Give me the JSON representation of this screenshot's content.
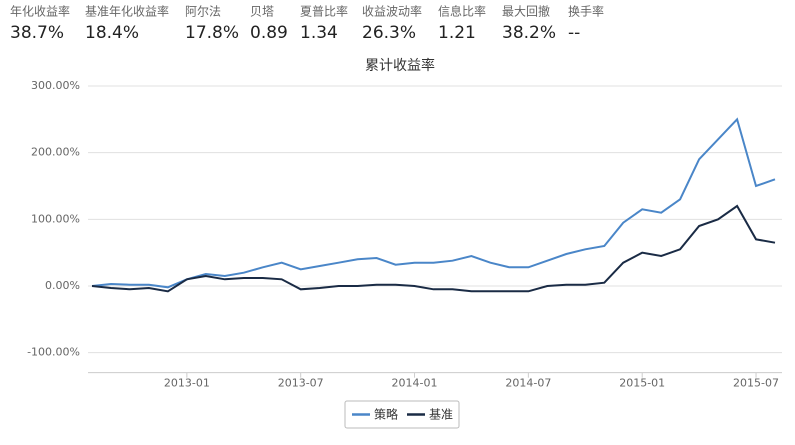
{
  "header": {
    "stats": [
      {
        "label": "年化收益率",
        "value": "38.7%"
      },
      {
        "label": "基准年化收益率",
        "value": "18.4%"
      },
      {
        "label": "阿尔法",
        "value": "17.8%"
      },
      {
        "label": "贝塔",
        "value": "0.89"
      },
      {
        "label": "夏普比率",
        "value": "1.34"
      },
      {
        "label": "收益波动率",
        "value": "26.3%"
      },
      {
        "label": "信息比率",
        "value": "1.21"
      },
      {
        "label": "最大回撤",
        "value": "38.2%"
      },
      {
        "label": "换手率",
        "value": "--"
      }
    ]
  },
  "chart_data": {
    "type": "line",
    "title": "累计收益率",
    "x": [
      "2012-08",
      "2012-09",
      "2012-10",
      "2012-11",
      "2012-12",
      "2013-01",
      "2013-02",
      "2013-03",
      "2013-04",
      "2013-05",
      "2013-06",
      "2013-07",
      "2013-08",
      "2013-09",
      "2013-10",
      "2013-11",
      "2013-12",
      "2014-01",
      "2014-02",
      "2014-03",
      "2014-04",
      "2014-05",
      "2014-06",
      "2014-07",
      "2014-08",
      "2014-09",
      "2014-10",
      "2014-11",
      "2014-12",
      "2015-01",
      "2015-02",
      "2015-03",
      "2015-04",
      "2015-05",
      "2015-06",
      "2015-07",
      "2015-08"
    ],
    "series": [
      {
        "name": "策略",
        "color": "#4a86c8",
        "values": [
          0,
          3,
          2,
          2,
          -2,
          10,
          18,
          15,
          20,
          28,
          35,
          25,
          30,
          35,
          40,
          42,
          32,
          35,
          35,
          38,
          45,
          35,
          28,
          28,
          38,
          48,
          55,
          60,
          95,
          115,
          110,
          130,
          190,
          220,
          250,
          150,
          160
        ]
      },
      {
        "name": "基准",
        "color": "#1a2b45",
        "values": [
          0,
          -3,
          -5,
          -3,
          -8,
          10,
          15,
          10,
          12,
          12,
          10,
          -5,
          -3,
          0,
          0,
          2,
          2,
          0,
          -5,
          -5,
          -8,
          -8,
          -8,
          -8,
          0,
          2,
          2,
          5,
          35,
          50,
          45,
          55,
          90,
          100,
          120,
          70,
          65
        ]
      }
    ],
    "xlim": [
      "2012-08",
      "2015-08"
    ],
    "xticks": [
      "2013-01",
      "2013-07",
      "2014-01",
      "2014-07",
      "2015-01",
      "2015-07"
    ],
    "ylim": [
      -130,
      310
    ],
    "yticks": [
      {
        "value": -100,
        "label": "-100.00%"
      },
      {
        "value": 0,
        "label": "0.00%"
      },
      {
        "value": 100,
        "label": "100.00%"
      },
      {
        "value": 200,
        "label": "200.00%"
      },
      {
        "value": 300,
        "label": "300.00%"
      }
    ],
    "grid": true,
    "legend": "bottom"
  }
}
